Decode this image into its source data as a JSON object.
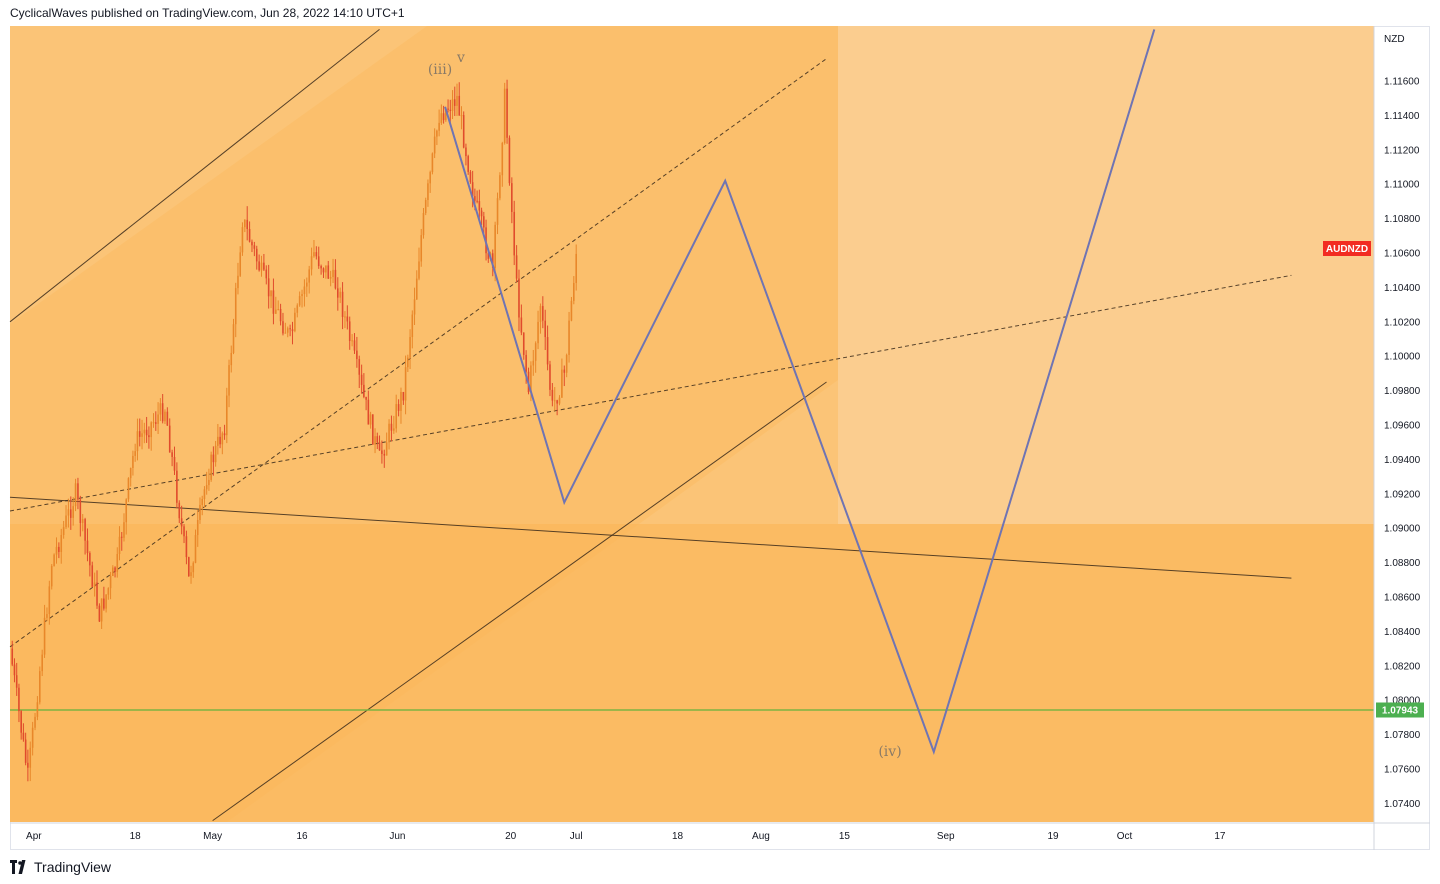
{
  "header": {
    "text": "CyclicalWaves published on TradingView.com, Jun 28, 2022 14:10 UTC+1"
  },
  "footer": {
    "brand": "TradingView",
    "logo_icon": "tradingview-logo-icon"
  },
  "colors": {
    "bg_light": "#fbcd8f",
    "bg_mid": "#fbc477",
    "bg_dark": "#fbbb63",
    "candle_up": "#e8872a",
    "candle_down": "#e04b2c",
    "projection_line": "#6f74b3",
    "horizontal_level": "#7cb342",
    "symbol_badge": "#f22c22",
    "price_badge": "#4caf50"
  },
  "chart_data": {
    "type": "candlestick",
    "symbol": "AUDNZD",
    "currency": "NZD",
    "current_price": "1.07943",
    "y_ticks": [
      "1.11600",
      "1.11400",
      "1.11200",
      "1.11000",
      "1.10800",
      "1.10600",
      "1.10400",
      "1.10200",
      "1.10000",
      "1.09800",
      "1.09600",
      "1.09400",
      "1.09200",
      "1.09000",
      "1.08800",
      "1.08600",
      "1.08400",
      "1.08200",
      "1.08000",
      "1.07800",
      "1.07600",
      "1.07400"
    ],
    "x_ticks": [
      "Apr",
      "18",
      "May",
      "16",
      "Jun",
      "20",
      "Jul",
      "18",
      "Aug",
      "15",
      "Sep",
      "19",
      "Oct",
      "17"
    ],
    "wave_labels": [
      "(iii)",
      "v",
      "(iv)"
    ],
    "projection_path": [
      {
        "date": "2022-06-09",
        "price": 1.1145
      },
      {
        "date": "2022-06-29",
        "price": 1.0915
      },
      {
        "date": "2022-07-26",
        "price": 1.1102
      },
      {
        "date": "2022-08-30",
        "price": 1.077
      },
      {
        "date": "2022-10-06",
        "price": 1.119
      }
    ],
    "price_path": [
      {
        "date": "2022-03-28",
        "price": 1.083
      },
      {
        "date": "2022-03-31",
        "price": 1.0755
      },
      {
        "date": "2022-04-04",
        "price": 1.088
      },
      {
        "date": "2022-04-08",
        "price": 1.092
      },
      {
        "date": "2022-04-12",
        "price": 1.085
      },
      {
        "date": "2022-04-15",
        "price": 1.088
      },
      {
        "date": "2022-04-18",
        "price": 1.095
      },
      {
        "date": "2022-04-23",
        "price": 1.097
      },
      {
        "date": "2022-04-27",
        "price": 1.087
      },
      {
        "date": "2022-04-30",
        "price": 1.093
      },
      {
        "date": "2022-05-03",
        "price": 1.096
      },
      {
        "date": "2022-05-06",
        "price": 1.108
      },
      {
        "date": "2022-05-10",
        "price": 1.104
      },
      {
        "date": "2022-05-14",
        "price": 1.101
      },
      {
        "date": "2022-05-18",
        "price": 1.106
      },
      {
        "date": "2022-05-22",
        "price": 1.104
      },
      {
        "date": "2022-05-26",
        "price": 1.098
      },
      {
        "date": "2022-05-29",
        "price": 1.094
      },
      {
        "date": "2022-06-02",
        "price": 1.098
      },
      {
        "date": "2022-06-05",
        "price": 1.107
      },
      {
        "date": "2022-06-08",
        "price": 1.114
      },
      {
        "date": "2022-06-11",
        "price": 1.115
      },
      {
        "date": "2022-06-14",
        "price": 1.109
      },
      {
        "date": "2022-06-17",
        "price": 1.105
      },
      {
        "date": "2022-06-19",
        "price": 1.115
      },
      {
        "date": "2022-06-21",
        "price": 1.104
      },
      {
        "date": "2022-06-23",
        "price": 1.098
      },
      {
        "date": "2022-06-25",
        "price": 1.103
      },
      {
        "date": "2022-06-27",
        "price": 1.097
      },
      {
        "date": "2022-06-29",
        "price": 1.099
      },
      {
        "date": "2022-07-01",
        "price": 1.106
      }
    ],
    "horizontal_level": 1.07943,
    "trendlines": [
      {
        "name": "channel-upper",
        "style": "solid",
        "from": {
          "date": "2022-03-28",
          "price": 1.102
        },
        "to": {
          "date": "2022-05-29",
          "price": 1.119
        }
      },
      {
        "name": "channel-lower",
        "style": "solid",
        "from": {
          "date": "2022-05-01",
          "price": 1.073
        },
        "to": {
          "date": "2022-08-12",
          "price": 1.0985
        }
      },
      {
        "name": "long-downtrend",
        "style": "solid",
        "from": {
          "date": "2022-03-28",
          "price": 1.0918
        },
        "to": {
          "date": "2022-10-29",
          "price": 1.0871
        }
      },
      {
        "name": "steep-support",
        "style": "dashed",
        "from": {
          "date": "2022-03-28",
          "price": 1.0831
        },
        "to": {
          "date": "2022-08-12",
          "price": 1.1173
        }
      },
      {
        "name": "shallow-support",
        "style": "dashed",
        "from": {
          "date": "2022-03-28",
          "price": 1.091
        },
        "to": {
          "date": "2022-10-29",
          "price": 1.1047
        }
      }
    ]
  }
}
